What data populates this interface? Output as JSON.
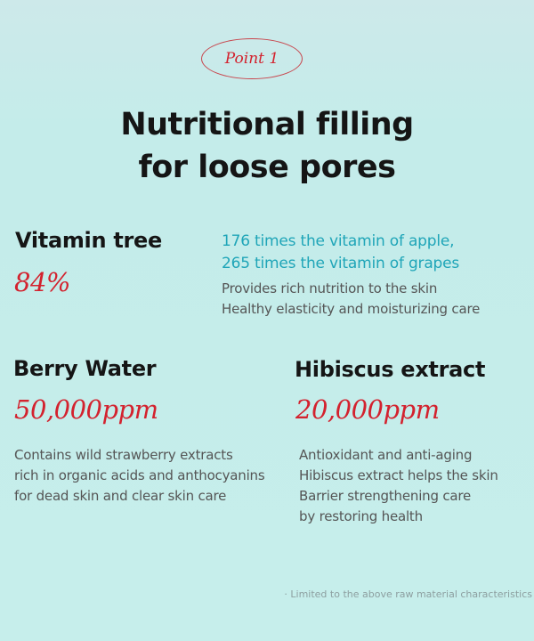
{
  "badge": "Point 1",
  "title": {
    "line1": "Nutritional filling",
    "line2": "for loose pores"
  },
  "vitamin": {
    "name": "Vitamin tree",
    "value": "84%",
    "highlight": [
      "176 times the vitamin of apple,",
      "265 times the vitamin of grapes"
    ],
    "desc": [
      "Provides rich nutrition to the skin",
      "Healthy elasticity and moisturizing care"
    ]
  },
  "berry": {
    "name": "Berry Water",
    "value": "50,000ppm",
    "desc": [
      "Contains wild strawberry extracts",
      "rich in organic acids and anthocyanins",
      "for dead skin and clear skin care"
    ]
  },
  "hibiscus": {
    "name": "Hibiscus extract",
    "value": "20,000ppm",
    "desc": [
      "Antioxidant and anti-aging",
      "Hibiscus extract helps the skin",
      "Barrier strengthening care",
      "by restoring health"
    ]
  },
  "note": "· Limited to the above raw material characteristics"
}
